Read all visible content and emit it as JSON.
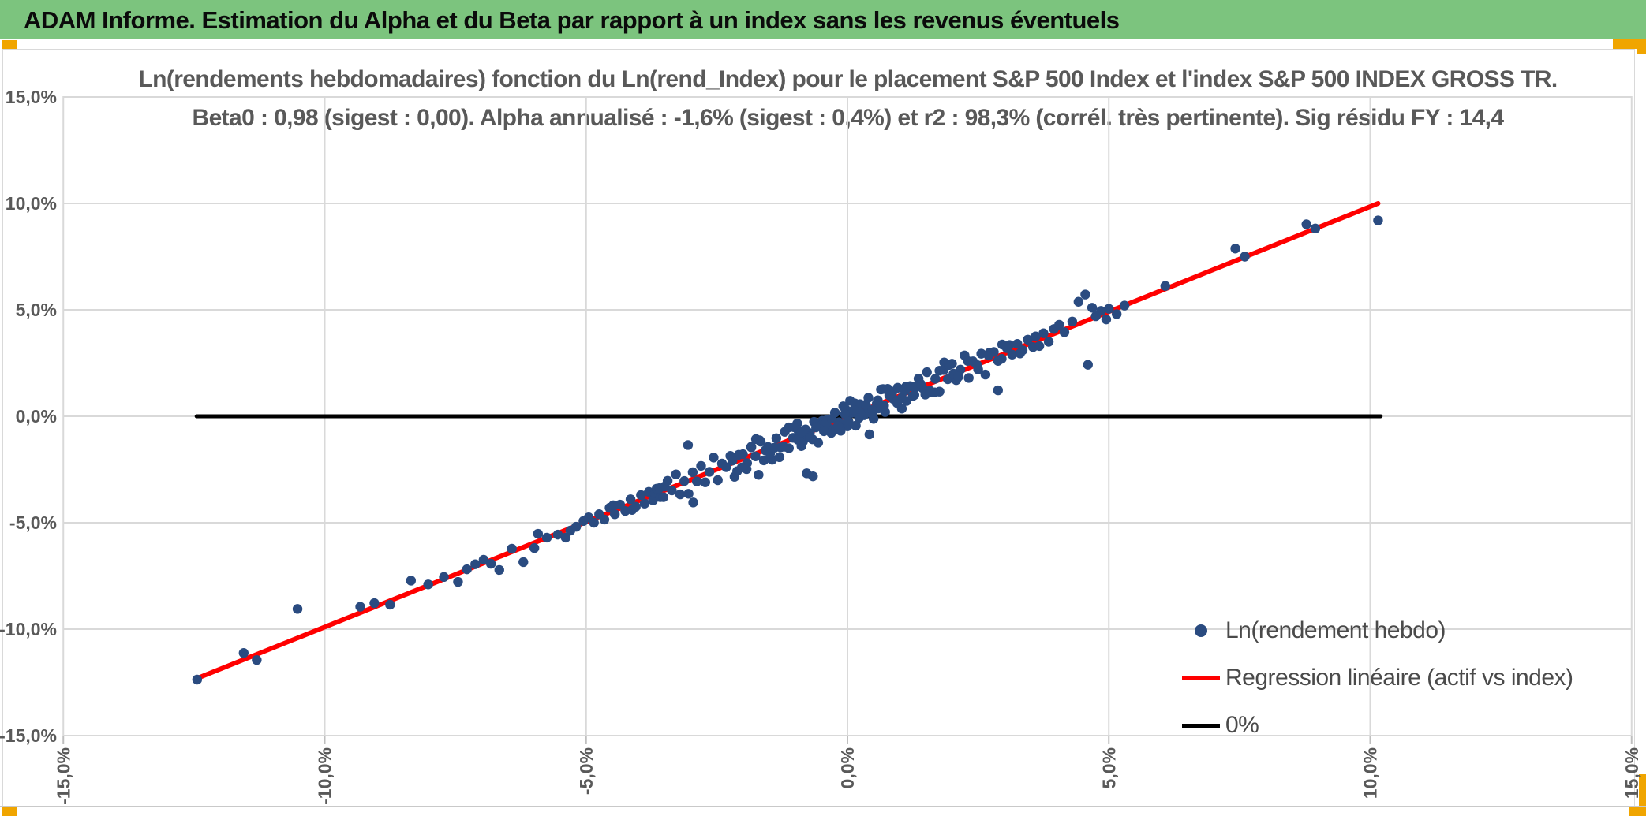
{
  "header": {
    "title": "ADAM Informe. Estimation du Alpha et du Beta par rapport à un index sans les revenus éventuels"
  },
  "colors": {
    "banner_green": "#7CC47E",
    "accent_orange": "#F0A500",
    "scatter_dot": "#2A4B80",
    "regression_red": "#FF0000",
    "zero_line_black": "#000000",
    "gridline_gray": "#D9D9D9",
    "text_gray": "#595959"
  },
  "chart_data": {
    "type": "scatter",
    "title_line1": "Ln(rendements hebdomadaires) fonction du Ln(rend_Index) pour le placement S&P 500 Index et l'index S&P 500 INDEX GROSS TR.",
    "title_line2": "Beta0 : 0,98 (sigest : 0,00). Alpha annualisé : -1,6% (sigest : 0,4%) et r2 : 98,3% (corrél. très pertinente). Sig résidu FY : 14,4",
    "stats": {
      "beta0": "0,98",
      "beta0_sigest": "0,00",
      "alpha_annualise": "-1,6%",
      "alpha_sigest": "0,4%",
      "r2": "98,3%",
      "correlation_note": "corrél. très pertinente",
      "sig_residu_FY": "14,4"
    },
    "grid": true,
    "legend_position": "bottom-right",
    "x_axis": {
      "min": -15,
      "max": 15,
      "tick_values": [
        -15,
        -10,
        -5,
        0,
        5,
        10,
        15
      ],
      "tick_labels": [
        "-15,0%",
        "-10,0%",
        "-5,0%",
        "0,0%",
        "5,0%",
        "10,0%",
        "15,0%"
      ]
    },
    "y_axis": {
      "min": -15,
      "max": 15,
      "tick_values": [
        15,
        10,
        5,
        0,
        -5,
        -10,
        -15
      ],
      "tick_labels": [
        "15,0%",
        "10,0%",
        "5,0%",
        "0,0%",
        "-5,0%",
        "-10,0%",
        "-15,0%"
      ]
    },
    "series": [
      {
        "name": "Ln(rendement hebdo)",
        "type": "scatter",
        "color": "#2A4B80",
        "marker_radius": 6.2,
        "points": [
          [
            -12.44,
            -12.37
          ],
          [
            -11.55,
            -11.12
          ],
          [
            -11.3,
            -11.45
          ],
          [
            -10.52,
            -9.05
          ],
          [
            -9.32,
            -8.95
          ],
          [
            -9.05,
            -8.78
          ],
          [
            -8.75,
            -8.85
          ],
          [
            -8.35,
            -7.72
          ],
          [
            -8.02,
            -7.9
          ],
          [
            -7.72,
            -7.55
          ],
          [
            -7.45,
            -7.78
          ],
          [
            -7.28,
            -7.19
          ],
          [
            -7.12,
            -6.95
          ],
          [
            -6.96,
            -6.74
          ],
          [
            -6.82,
            -6.93
          ],
          [
            -6.66,
            -7.22
          ],
          [
            -6.42,
            -6.22
          ],
          [
            -6.2,
            -6.85
          ],
          [
            -5.99,
            -6.19
          ],
          [
            -5.92,
            -5.52
          ],
          [
            -5.75,
            -5.7
          ],
          [
            -5.54,
            -5.56
          ],
          [
            -5.39,
            -5.7
          ],
          [
            -5.3,
            -5.37
          ],
          [
            -5.19,
            -5.19
          ],
          [
            -5.05,
            -4.92
          ],
          [
            -4.95,
            -4.75
          ],
          [
            -4.85,
            -5.0
          ],
          [
            -4.75,
            -4.6
          ],
          [
            -4.65,
            -4.85
          ],
          [
            -4.55,
            -4.3
          ],
          [
            -4.48,
            -4.18
          ],
          [
            -4.45,
            -4.6
          ],
          [
            -4.35,
            -4.15
          ],
          [
            -4.25,
            -4.45
          ],
          [
            -4.15,
            -3.9
          ],
          [
            -4.12,
            -4.4
          ],
          [
            -4.05,
            -4.25
          ],
          [
            -3.95,
            -3.7
          ],
          [
            -3.88,
            -4.1
          ],
          [
            -3.8,
            -3.55
          ],
          [
            -3.72,
            -3.95
          ],
          [
            -3.68,
            -3.62
          ],
          [
            -3.65,
            -3.4
          ],
          [
            -3.58,
            -3.8
          ],
          [
            -3.5,
            -3.3
          ],
          [
            -3.6,
            -3.38
          ],
          [
            -3.52,
            -3.8
          ],
          [
            -3.44,
            -3.03
          ],
          [
            -3.36,
            -3.48
          ],
          [
            -3.28,
            -2.73
          ],
          [
            -3.2,
            -3.67
          ],
          [
            -3.12,
            -3.04
          ],
          [
            -3.04,
            -3.64
          ],
          [
            -2.96,
            -2.63
          ],
          [
            -2.88,
            -3.06
          ],
          [
            -2.8,
            -2.33
          ],
          [
            -2.72,
            -3.1
          ],
          [
            -2.64,
            -2.61
          ],
          [
            -2.56,
            -1.94
          ],
          [
            -2.48,
            -3.0
          ],
          [
            -2.4,
            -2.22
          ],
          [
            -2.32,
            -2.39
          ],
          [
            -2.24,
            -1.86
          ],
          [
            -2.16,
            -2.84
          ],
          [
            -2.08,
            -1.81
          ],
          [
            -2.0,
            -1.78
          ],
          [
            -1.92,
            -2.2
          ],
          [
            -1.84,
            -1.43
          ],
          [
            -1.76,
            -1.88
          ],
          [
            -1.68,
            -1.13
          ],
          [
            -1.6,
            -2.07
          ],
          [
            -1.52,
            -1.44
          ],
          [
            -1.44,
            -2.04
          ],
          [
            -1.36,
            -1.03
          ],
          [
            -1.28,
            -1.46
          ],
          [
            -1.2,
            -0.73
          ],
          [
            -1.12,
            -1.5
          ],
          [
            -1.04,
            -1.01
          ],
          [
            -0.96,
            -0.34
          ],
          [
            -0.88,
            -1.4
          ],
          [
            -0.8,
            -0.62
          ],
          [
            -0.72,
            -0.79
          ],
          [
            -0.64,
            -0.26
          ],
          [
            -0.56,
            -1.24
          ],
          [
            -0.48,
            -0.21
          ],
          [
            -0.4,
            -0.18
          ],
          [
            -0.32,
            -0.6
          ],
          [
            -0.24,
            0.17
          ],
          [
            -0.16,
            -0.28
          ],
          [
            -0.08,
            0.47
          ],
          [
            0.0,
            -0.47
          ],
          [
            0.08,
            0.16
          ],
          [
            0.16,
            -0.44
          ],
          [
            0.24,
            0.57
          ],
          [
            0.32,
            0.14
          ],
          [
            0.4,
            0.87
          ],
          [
            0.48,
            0.1
          ],
          [
            0.56,
            0.59
          ],
          [
            0.64,
            1.26
          ],
          [
            0.72,
            0.2
          ],
          [
            0.8,
            0.98
          ],
          [
            0.88,
            0.81
          ],
          [
            0.96,
            1.34
          ],
          [
            1.04,
            0.36
          ],
          [
            1.12,
            1.39
          ],
          [
            1.2,
            1.42
          ],
          [
            1.28,
            1.0
          ],
          [
            1.36,
            1.77
          ],
          [
            1.44,
            1.32
          ],
          [
            1.52,
            2.07
          ],
          [
            1.6,
            1.13
          ],
          [
            1.68,
            1.76
          ],
          [
            1.76,
            1.16
          ],
          [
            1.84,
            2.17
          ],
          [
            1.92,
            1.74
          ],
          [
            2.0,
            2.47
          ],
          [
            2.08,
            1.7
          ],
          [
            2.16,
            2.19
          ],
          [
            2.24,
            2.86
          ],
          [
            2.32,
            1.8
          ],
          [
            2.4,
            2.58
          ],
          [
            2.48,
            2.41
          ],
          [
            2.56,
            2.94
          ],
          [
            2.64,
            1.96
          ],
          [
            2.72,
            2.99
          ],
          [
            2.8,
            3.02
          ],
          [
            2.88,
            2.6
          ],
          [
            2.96,
            3.37
          ],
          [
            -2.2,
            -2.08
          ],
          [
            -2.11,
            -2.58
          ],
          [
            -2.02,
            -2.4
          ],
          [
            -1.93,
            -2.48
          ],
          [
            -1.84,
            -1.46
          ],
          [
            -1.75,
            -1.07
          ],
          [
            -1.66,
            -1.19
          ],
          [
            -1.57,
            -1.6
          ],
          [
            -1.48,
            -1.75
          ],
          [
            -1.39,
            -1.47
          ],
          [
            -1.3,
            -1.92
          ],
          [
            -1.21,
            -1.43
          ],
          [
            -1.12,
            -0.52
          ],
          [
            -1.03,
            -0.51
          ],
          [
            -0.94,
            -0.66
          ],
          [
            -0.85,
            -1.18
          ],
          [
            -0.76,
            -0.94
          ],
          [
            -0.67,
            -1.08
          ],
          [
            -0.58,
            -0.4
          ],
          [
            -0.49,
            -0.42
          ],
          [
            -0.4,
            -0.28
          ],
          [
            -0.31,
            -0.78
          ],
          [
            -0.22,
            -0.6
          ],
          [
            -0.13,
            -0.68
          ],
          [
            -0.04,
            0.34
          ],
          [
            0.05,
            0.73
          ],
          [
            0.14,
            0.61
          ],
          [
            0.23,
            0.2
          ],
          [
            0.32,
            0.05
          ],
          [
            0.41,
            0.33
          ],
          [
            0.5,
            -0.12
          ],
          [
            0.59,
            0.37
          ],
          [
            0.68,
            1.28
          ],
          [
            0.77,
            1.29
          ],
          [
            0.86,
            1.14
          ],
          [
            0.95,
            0.62
          ],
          [
            1.04,
            0.86
          ],
          [
            1.13,
            0.72
          ],
          [
            1.22,
            1.4
          ],
          [
            1.31,
            1.38
          ],
          [
            1.4,
            1.52
          ],
          [
            1.49,
            1.02
          ],
          [
            1.58,
            1.2
          ],
          [
            1.67,
            1.12
          ],
          [
            1.76,
            2.14
          ],
          [
            1.85,
            2.53
          ],
          [
            1.94,
            2.41
          ],
          [
            2.03,
            2.0
          ],
          [
            2.12,
            1.85
          ],
          [
            -0.95,
            -1.1
          ],
          [
            -0.88,
            -0.75
          ],
          [
            -0.72,
            -1.0
          ],
          [
            -0.6,
            -0.52
          ],
          [
            -0.45,
            -0.7
          ],
          [
            -0.3,
            -0.12
          ],
          [
            -0.18,
            -0.45
          ],
          [
            -0.05,
            0.1
          ],
          [
            0.02,
            -0.25
          ],
          [
            0.12,
            0.3
          ],
          [
            0.22,
            -0.08
          ],
          [
            0.35,
            0.55
          ],
          [
            0.48,
            0.28
          ],
          [
            0.58,
            0.75
          ],
          [
            0.7,
            0.5
          ],
          [
            0.82,
            1.05
          ],
          [
            0.95,
            0.7
          ],
          [
            1.1,
            1.2
          ],
          [
            1.25,
            0.95
          ],
          [
            1.38,
            1.55
          ],
          [
            2.3,
            2.6
          ],
          [
            2.5,
            2.2
          ],
          [
            2.7,
            2.85
          ],
          [
            2.95,
            2.7
          ],
          [
            3.1,
            3.35
          ],
          [
            3.05,
            3.2
          ],
          [
            3.15,
            2.9
          ],
          [
            3.25,
            3.4
          ],
          [
            3.35,
            3.1
          ],
          [
            3.45,
            3.6
          ],
          [
            3.55,
            3.25
          ],
          [
            3.67,
            3.3
          ],
          [
            3.75,
            3.9
          ],
          [
            3.85,
            3.5
          ],
          [
            3.95,
            4.1
          ],
          [
            3.6,
            3.75
          ],
          [
            3.3,
            2.95
          ],
          [
            4.55,
            5.72
          ],
          [
            4.42,
            5.38
          ],
          [
            4.68,
            5.1
          ],
          [
            4.85,
            4.95
          ],
          [
            5.0,
            5.05
          ],
          [
            5.15,
            4.8
          ],
          [
            4.95,
            4.55
          ],
          [
            5.3,
            5.2
          ],
          [
            4.75,
            4.7
          ],
          [
            4.6,
            2.42
          ],
          [
            4.3,
            4.45
          ],
          [
            4.15,
            3.95
          ],
          [
            4.05,
            4.3
          ],
          [
            6.08,
            6.12
          ],
          [
            7.42,
            7.88
          ],
          [
            7.6,
            7.5
          ],
          [
            8.78,
            9.02
          ],
          [
            8.95,
            8.82
          ],
          [
            10.15,
            9.2
          ],
          [
            -0.78,
            -2.68
          ],
          [
            -0.66,
            -2.82
          ],
          [
            -2.95,
            -4.05
          ],
          [
            -1.7,
            -2.75
          ],
          [
            -3.05,
            -1.35
          ],
          [
            2.88,
            1.22
          ],
          [
            0.42,
            -0.85
          ]
        ]
      },
      {
        "name": "Regression linéaire (actif vs index)",
        "type": "line",
        "color": "#FF0000",
        "stroke_width": 6,
        "points": [
          [
            -12.45,
            -12.32
          ],
          [
            10.15,
            10.0
          ]
        ]
      },
      {
        "name": "0%",
        "type": "line",
        "color": "#000000",
        "stroke_width": 5,
        "points": [
          [
            -12.45,
            0
          ],
          [
            10.2,
            0
          ]
        ]
      }
    ]
  }
}
